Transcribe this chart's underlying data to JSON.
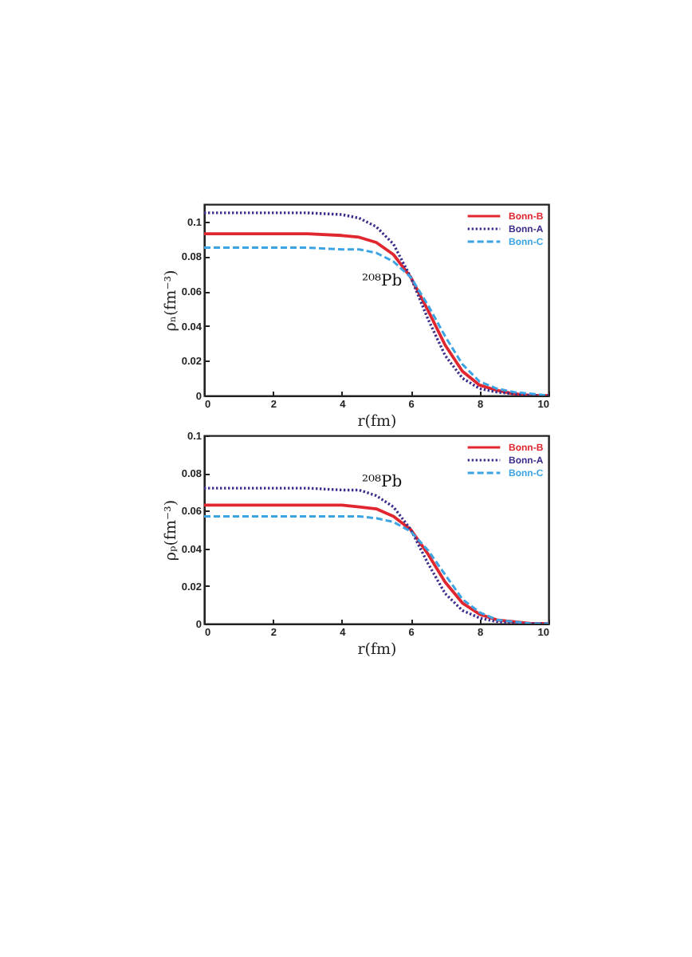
{
  "chart_data": [
    {
      "type": "line",
      "xlabel": "r(fm)",
      "ylabel": "ρₙ(fm⁻³)",
      "annotations": [
        "²⁰⁸Pb"
      ],
      "x": [
        0,
        1,
        2,
        3,
        4,
        4.5,
        5,
        5.5,
        6,
        6.5,
        7,
        7.5,
        8,
        8.5,
        9,
        9.5,
        10
      ],
      "xlim": [
        0,
        10
      ],
      "xticks": [
        0,
        2,
        4,
        6,
        8,
        10
      ],
      "ylim": [
        0,
        0.11
      ],
      "yticks": [
        0,
        0.02,
        0.04,
        0.06,
        0.08,
        0.1
      ],
      "legend": "top right",
      "series": [
        {
          "name": "Bonn-B",
          "color": "#e0262e",
          "line_style": "solid",
          "values": [
            0.093,
            0.093,
            0.093,
            0.093,
            0.092,
            0.091,
            0.088,
            0.081,
            0.068,
            0.049,
            0.029,
            0.014,
            0.006,
            0.003,
            0.001,
            0,
            0
          ]
        },
        {
          "name": "Bonn-A",
          "color": "#3b2f8c",
          "line_style": "dotted",
          "values": [
            0.105,
            0.105,
            0.105,
            0.105,
            0.104,
            0.102,
            0.097,
            0.087,
            0.068,
            0.044,
            0.023,
            0.01,
            0.004,
            0.002,
            0.001,
            0,
            0
          ]
        },
        {
          "name": "Bonn-C",
          "color": "#3da4e3",
          "line_style": "dashed",
          "values": [
            0.085,
            0.085,
            0.085,
            0.085,
            0.084,
            0.084,
            0.082,
            0.077,
            0.068,
            0.052,
            0.034,
            0.018,
            0.008,
            0.004,
            0.002,
            0.001,
            0
          ]
        }
      ]
    },
    {
      "type": "line",
      "xlabel": "r(fm)",
      "ylabel": "ρₚ(fm⁻³)",
      "annotations": [
        "²⁰⁸Pb"
      ],
      "x": [
        0,
        1,
        2,
        3,
        4,
        4.5,
        5,
        5.5,
        6,
        6.5,
        7,
        7.5,
        8,
        8.5,
        9,
        9.5,
        10
      ],
      "xlim": [
        0,
        10
      ],
      "xticks": [
        0,
        2,
        4,
        6,
        8,
        10
      ],
      "ylim": [
        0,
        0.1
      ],
      "yticks": [
        0,
        0.02,
        0.04,
        0.06,
        0.08,
        0.1
      ],
      "legend": "top right",
      "series": [
        {
          "name": "Bonn-B",
          "color": "#e0262e",
          "line_style": "solid",
          "values": [
            0.063,
            0.063,
            0.063,
            0.063,
            0.063,
            0.062,
            0.061,
            0.057,
            0.05,
            0.037,
            0.022,
            0.011,
            0.005,
            0.002,
            0.001,
            0,
            0
          ]
        },
        {
          "name": "Bonn-A",
          "color": "#3b2f8c",
          "line_style": "dotted",
          "values": [
            0.072,
            0.072,
            0.072,
            0.072,
            0.071,
            0.071,
            0.068,
            0.062,
            0.05,
            0.032,
            0.016,
            0.007,
            0.003,
            0.001,
            0,
            0,
            0
          ]
        },
        {
          "name": "Bonn-C",
          "color": "#3da4e3",
          "line_style": "dashed",
          "values": [
            0.057,
            0.057,
            0.057,
            0.057,
            0.057,
            0.057,
            0.056,
            0.054,
            0.049,
            0.039,
            0.026,
            0.013,
            0.006,
            0.002,
            0.001,
            0,
            0
          ]
        }
      ]
    }
  ]
}
